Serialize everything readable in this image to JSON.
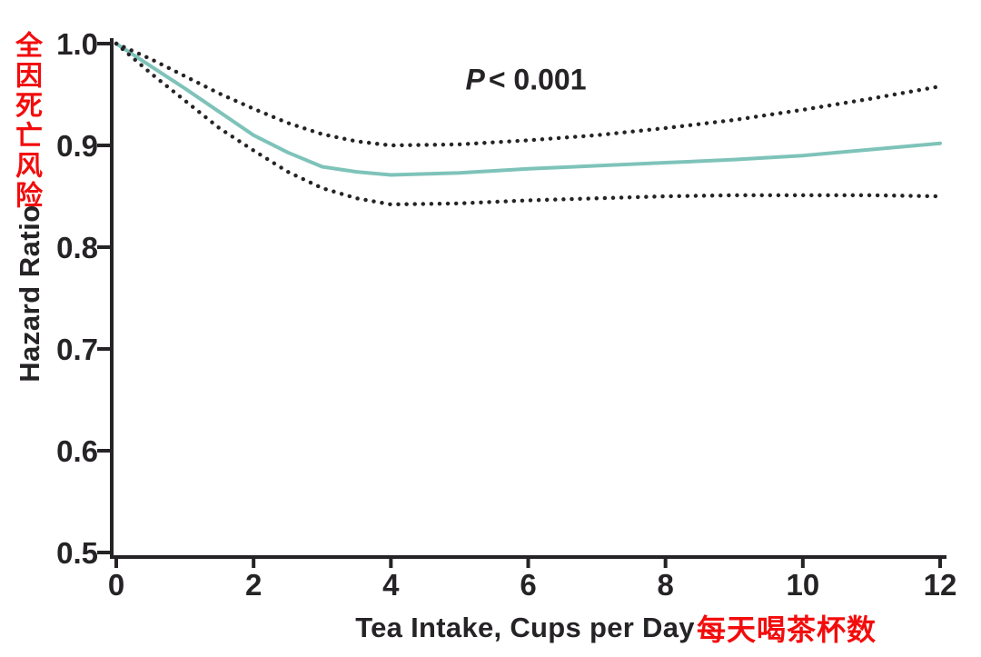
{
  "colors": {
    "ink": "#262326",
    "annotation_red": "#f30c0c",
    "hr_line_teal": "#7ec3ba",
    "ci_dotted_black": "#262326",
    "background": "#ffffff"
  },
  "annotations": {
    "y_axis_chinese": "全因死亡风险",
    "x_axis_chinese": "每天喝茶杯数",
    "p_symbol": "P",
    "p_rest": "< 0.001"
  },
  "chart_data": {
    "type": "line",
    "title": "",
    "xlabel": "Tea Intake, Cups per Day",
    "ylabel": "Hazard Ratio",
    "xlim": [
      0,
      12
    ],
    "ylim": [
      0.5,
      1.0
    ],
    "x_ticks": [
      0,
      2,
      4,
      6,
      8,
      10,
      12
    ],
    "x_tick_labels": [
      "0",
      "2",
      "4",
      "6",
      "8",
      "10",
      "12"
    ],
    "y_ticks": [
      1.0,
      0.9,
      0.8,
      0.7,
      0.6,
      0.5
    ],
    "y_tick_labels": [
      "1.0",
      "0.9",
      "0.8",
      "0.7",
      "0.6",
      "0.5"
    ],
    "grid": false,
    "legend": "none",
    "annotation": "P < 0.001",
    "x": [
      0,
      0.5,
      1,
      1.5,
      2,
      2.5,
      3,
      3.5,
      4,
      5,
      6,
      7,
      8,
      9,
      10,
      11,
      12
    ],
    "series": [
      {
        "name": "hazard-ratio",
        "style": "solid",
        "color": "#7ec3ba",
        "values": [
          1.0,
          0.978,
          0.956,
          0.933,
          0.91,
          0.893,
          0.879,
          0.874,
          0.871,
          0.873,
          0.877,
          0.88,
          0.883,
          0.886,
          0.89,
          0.896,
          0.902
        ]
      },
      {
        "name": "ci-upper",
        "style": "dotted",
        "color": "#262326",
        "values": [
          1.0,
          0.985,
          0.968,
          0.951,
          0.936,
          0.922,
          0.911,
          0.904,
          0.9,
          0.901,
          0.905,
          0.91,
          0.917,
          0.925,
          0.935,
          0.946,
          0.958
        ]
      },
      {
        "name": "ci-lower",
        "style": "dotted",
        "color": "#262326",
        "values": [
          1.0,
          0.971,
          0.944,
          0.917,
          0.895,
          0.874,
          0.858,
          0.848,
          0.842,
          0.843,
          0.846,
          0.848,
          0.85,
          0.851,
          0.851,
          0.851,
          0.85
        ]
      }
    ]
  }
}
